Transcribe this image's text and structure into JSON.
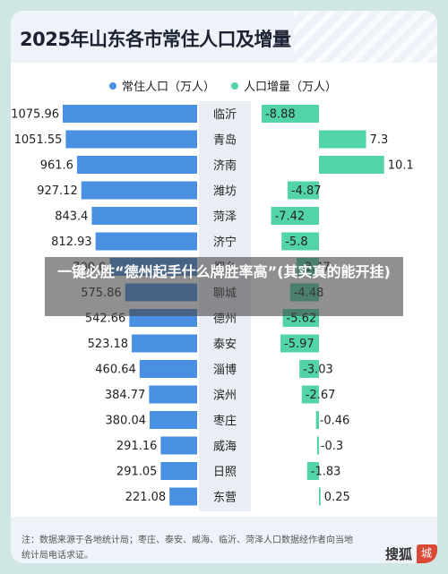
{
  "title": "2025年山东各市常住人口及增量",
  "legend": [
    {
      "label": "常住人口（万人）",
      "color": "#4a90e2"
    },
    {
      "label": "人口增量（万人）",
      "color": "#52d3a9"
    }
  ],
  "footer": {
    "note": "注：数据来源于各地统计局；枣庄、泰安、威海、临沂、菏泽人口数据经作者向当地统计局电话求证。",
    "brand": "搜狐",
    "brand_tag": "城市"
  },
  "overlay": {
    "text": "一键必胜“德州起手什么牌胜率高”(其实真的能开挂)"
  },
  "colors": {
    "population": "#4a90e2",
    "increase": "#52d3a9",
    "band": "#e9eef5"
  },
  "chart_data": {
    "type": "bar",
    "title": "2025年山东各市常住人口及增量",
    "categories": [
      "临沂",
      "青岛",
      "济南",
      "潍坊",
      "菏泽",
      "济宁",
      "烟台",
      "聊城",
      "德州",
      "泰安",
      "淄博",
      "滨州",
      "枣庄",
      "威海",
      "日照",
      "东营"
    ],
    "series": [
      {
        "name": "常住人口（万人）",
        "values": [
          1075.96,
          1051.55,
          961.6,
          927.12,
          843.4,
          812.93,
          700.0,
          575.86,
          542.66,
          523.18,
          460.64,
          384.77,
          380.04,
          291.16,
          291.05,
          221.08
        ]
      },
      {
        "name": "人口增量（万人）",
        "values": [
          -8.88,
          7.3,
          10.1,
          -4.87,
          -7.42,
          -5.8,
          -3.47,
          -4.48,
          -5.62,
          -5.97,
          -3.03,
          -2.67,
          -0.46,
          -0.3,
          -1.83,
          0.25
        ]
      }
    ],
    "population_labels": [
      "1075.96",
      "1051.55",
      "961.6",
      "927.12",
      "843.4",
      "812.93",
      "700.0",
      "575.86",
      "542.66",
      "523.18",
      "460.64",
      "384.77",
      "380.04",
      "291.16",
      "291.05",
      "221.08"
    ],
    "increase_labels": [
      "-8.88",
      "7.3",
      "10.1",
      "-4.87",
      "-7.42",
      "-5.8",
      "-3.47",
      "-4.48",
      "-5.62",
      "-5.97",
      "-3.03",
      "-2.67",
      "-0.46",
      "-0.3",
      "-1.83",
      "0.25"
    ],
    "grid": false,
    "legend_position": "top-center"
  }
}
